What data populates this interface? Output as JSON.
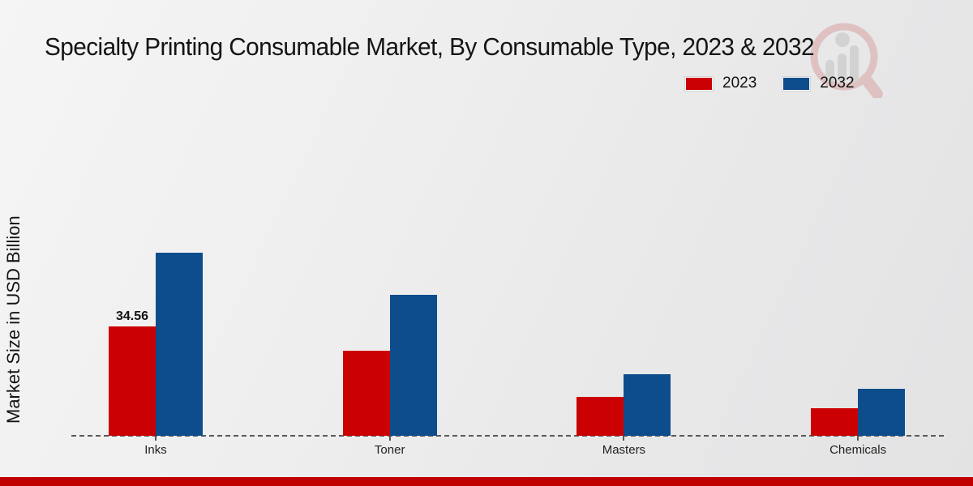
{
  "page": {
    "title": "Specialty Printing Consumable Market, By Consumable Type, 2023 & 2032"
  },
  "chart_data": {
    "type": "bar",
    "title": "Specialty Printing Consumable Market, By Consumable Type, 2023 & 2032",
    "xlabel": "",
    "ylabel": "Market Size in USD Billion",
    "categories": [
      "Inks",
      "Toner",
      "Masters",
      "Chemicals"
    ],
    "series": [
      {
        "name": "2023",
        "color": "#cb0002",
        "values": [
          34.56,
          26.9,
          12.3,
          8.7
        ],
        "value_labels": [
          "34.56",
          null,
          null,
          null
        ]
      },
      {
        "name": "2032",
        "color": "#0d4d8c",
        "values": [
          57.9,
          44.5,
          19.5,
          14.9
        ],
        "value_labels": [
          null,
          null,
          null,
          null
        ]
      }
    ],
    "ylim": [
      0,
      65
    ],
    "grid": false,
    "legend_position": "top-right",
    "x_axis_style": "dashed-line",
    "only_labeled_point": "Inks 2023 = 34.56"
  },
  "footer": {
    "accent_color": "#c00000"
  },
  "watermark": {
    "name": "market-research-future-logo",
    "glass_color": "#c56a6a",
    "bars_color": "#b9b9b9"
  }
}
